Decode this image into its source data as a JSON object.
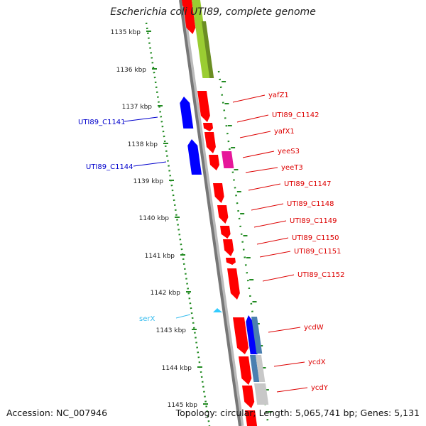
{
  "title": "Escherichia coli UTI89, complete genome",
  "footer": {
    "accession": "Accession: NC_007946",
    "stats": "Topology: circular; Length: 5,065,741 bp; Genes: 5,131"
  },
  "colors": {
    "forward_cds": "#ff0000",
    "reverse_cds": "#0000ff",
    "trna": "#33ccff",
    "dot_ring": "#228b22",
    "backbone": "#777777",
    "pink_feature": "#e6179a",
    "green_feature": "#9acd32",
    "grey_feature": "#c8c8c8",
    "steelblue_feature": "#4a7fb0"
  },
  "ticks": [
    "1135 kbp",
    "1136 kbp",
    "1137 kbp",
    "1138 kbp",
    "1139 kbp",
    "1140 kbp",
    "1141 kbp",
    "1142 kbp",
    "1143 kbp",
    "1144 kbp",
    "1145 kbp"
  ],
  "left_labels": [
    {
      "text": "UTI89_C1141",
      "color": "#0000cc"
    },
    {
      "text": "UTI89_C1144",
      "color": "#0000cc"
    },
    {
      "text": "serX",
      "color": "#33bbee"
    }
  ],
  "right_labels": [
    {
      "text": "yafZ1"
    },
    {
      "text": "UTI89_C1142"
    },
    {
      "text": "yafX1"
    },
    {
      "text": "yeeS3"
    },
    {
      "text": "yeeT3"
    },
    {
      "text": "UTI89_C1147"
    },
    {
      "text": "UTI89_C1148"
    },
    {
      "text": "UTI89_C1149"
    },
    {
      "text": "UTI89_C1150"
    },
    {
      "text": "UTI89_C1151"
    },
    {
      "text": "UTI89_C1152"
    },
    {
      "text": "ycdW"
    },
    {
      "text": "ycdX"
    },
    {
      "text": "ycdY"
    }
  ],
  "right_label_color": "#dd0000"
}
